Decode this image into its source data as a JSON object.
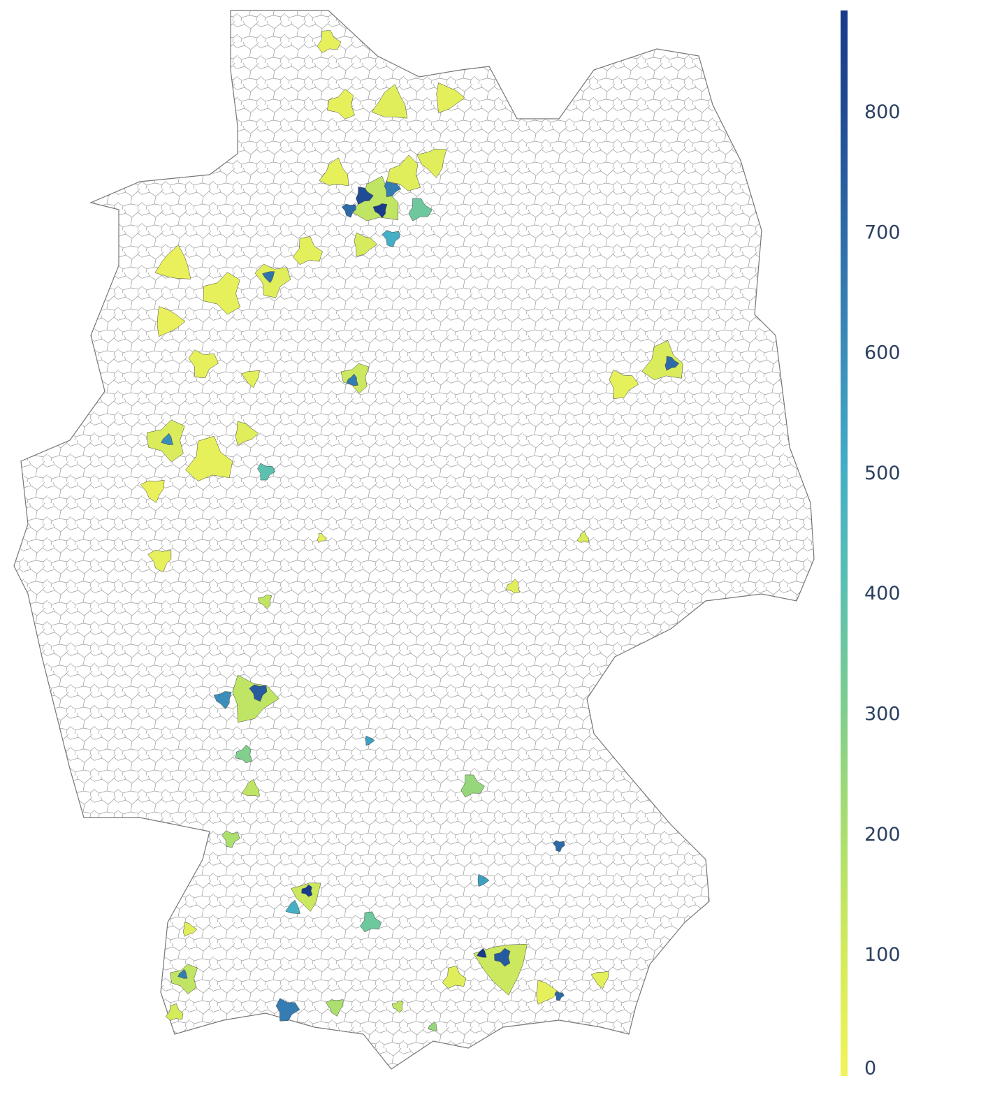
{
  "chart_data": {
    "type": "choropleth",
    "region_values": [
      150,
      800,
      650,
      700,
      880,
      60,
      40,
      350,
      90,
      500,
      60,
      40,
      60,
      40,
      50,
      60,
      680,
      40,
      30,
      50,
      30,
      40,
      50,
      80,
      600,
      40,
      60,
      400,
      30,
      120,
      650,
      80,
      700,
      40,
      40,
      150,
      60,
      80,
      40,
      150,
      750,
      600,
      300,
      150,
      250,
      550,
      700,
      120,
      880,
      500,
      350,
      550,
      200,
      120,
      750,
      880,
      60,
      40,
      700,
      50,
      150,
      650,
      100,
      60,
      650,
      200,
      150,
      250
    ],
    "colorscale": [
      [
        0,
        "#f2f35b"
      ],
      [
        0.12,
        "#d2ea5c"
      ],
      [
        0.25,
        "#a2dc72"
      ],
      [
        0.36,
        "#78cc92"
      ],
      [
        0.46,
        "#5ac0b2"
      ],
      [
        0.57,
        "#43aec6"
      ],
      [
        0.68,
        "#3a8dba"
      ],
      [
        0.8,
        "#2c68a7"
      ],
      [
        0.91,
        "#1f4a94"
      ],
      [
        1,
        "#173a8a"
      ]
    ],
    "clim": [
      0,
      885
    ],
    "colorbar_ticks": [
      0,
      100,
      200,
      300,
      400,
      500,
      600,
      700,
      800
    ]
  }
}
